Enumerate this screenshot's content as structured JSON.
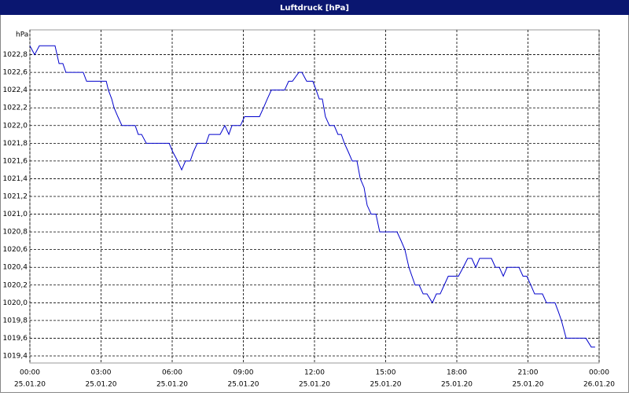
{
  "chart_data": {
    "type": "line",
    "title": "Luftdruck [hPa]",
    "y_unit": "hPa",
    "x": [
      0,
      0.2,
      0.4,
      1.06,
      1.23,
      1.39,
      1.52,
      2.25,
      2.39,
      3.22,
      3.31,
      3.45,
      3.55,
      3.71,
      3.88,
      4.44,
      4.57,
      4.71,
      4.91,
      5.87,
      6.03,
      6.23,
      6.4,
      6.56,
      6.76,
      6.89,
      7.06,
      7.43,
      7.56,
      8.02,
      8.22,
      8.39,
      8.52,
      8.88,
      9.05,
      9.68,
      9.85,
      10.01,
      10.18,
      10.74,
      10.91,
      11.07,
      11.34,
      11.47,
      11.67,
      11.93,
      12.07,
      12.2,
      12.33,
      12.46,
      12.63,
      12.83,
      12.99,
      13.13,
      13.26,
      13.43,
      13.59,
      13.79,
      13.93,
      14.09,
      14.22,
      14.39,
      14.59,
      14.75,
      15.48,
      15.65,
      15.81,
      15.98,
      16.11,
      16.24,
      16.41,
      16.58,
      16.74,
      16.97,
      17.14,
      17.3,
      17.47,
      17.64,
      18.07,
      18.27,
      18.46,
      18.63,
      18.8,
      18.96,
      19.46,
      19.63,
      19.79,
      19.96,
      20.12,
      20.62,
      20.79,
      20.95,
      21.12,
      21.28,
      21.61,
      21.78,
      22.14,
      22.28,
      22.41,
      22.61,
      23.44,
      23.67,
      23.83
    ],
    "series": [
      {
        "name": "Luftdruck",
        "color": "#0000cc",
        "values": [
          1022.9,
          1022.8,
          1022.9,
          1022.9,
          1022.7,
          1022.7,
          1022.6,
          1022.6,
          1022.5,
          1022.5,
          1022.4,
          1022.3,
          1022.2,
          1022.1,
          1022.0,
          1022.0,
          1021.9,
          1021.9,
          1021.8,
          1021.8,
          1021.7,
          1021.6,
          1021.5,
          1021.6,
          1021.6,
          1021.7,
          1021.8,
          1021.8,
          1021.9,
          1021.9,
          1022.0,
          1021.9,
          1022.0,
          1022.0,
          1022.1,
          1022.1,
          1022.2,
          1022.3,
          1022.4,
          1022.4,
          1022.5,
          1022.5,
          1022.6,
          1022.6,
          1022.5,
          1022.5,
          1022.4,
          1022.3,
          1022.3,
          1022.1,
          1022.0,
          1022.0,
          1021.9,
          1021.9,
          1021.8,
          1021.7,
          1021.6,
          1021.6,
          1021.4,
          1021.3,
          1021.1,
          1021.0,
          1021.0,
          1020.8,
          1020.8,
          1020.7,
          1020.6,
          1020.4,
          1020.3,
          1020.2,
          1020.2,
          1020.1,
          1020.1,
          1020.0,
          1020.1,
          1020.1,
          1020.2,
          1020.3,
          1020.3,
          1020.4,
          1020.5,
          1020.5,
          1020.4,
          1020.5,
          1020.5,
          1020.4,
          1020.4,
          1020.3,
          1020.4,
          1020.4,
          1020.3,
          1020.3,
          1020.2,
          1020.1,
          1020.1,
          1020.0,
          1020.0,
          1019.9,
          1019.8,
          1019.6,
          1019.6,
          1019.5,
          1019.5
        ]
      }
    ],
    "xlim": [
      0,
      24
    ],
    "xticks": [
      {
        "value": 0,
        "label": "00:00"
      },
      {
        "value": 3,
        "label": "03:00"
      },
      {
        "value": 6,
        "label": "06:00"
      },
      {
        "value": 9,
        "label": "09:00"
      },
      {
        "value": 12,
        "label": "12:00"
      },
      {
        "value": 15,
        "label": "15:00"
      },
      {
        "value": 18,
        "label": "18:00"
      },
      {
        "value": 21,
        "label": "21:00"
      },
      {
        "value": 24,
        "label": "00:00"
      }
    ],
    "xtick_dates": [
      "25.01.20",
      "25.01.20",
      "25.01.20",
      "25.01.20",
      "25.01.20",
      "25.01.20",
      "25.01.20",
      "25.01.20",
      "26.01.20"
    ],
    "ylim": [
      1019.32,
      1023.08
    ],
    "yticks": [
      {
        "value": 1019.4,
        "label": "1019,4"
      },
      {
        "value": 1019.6,
        "label": "1019,6"
      },
      {
        "value": 1019.8,
        "label": "1019,8"
      },
      {
        "value": 1020.0,
        "label": "1020,0"
      },
      {
        "value": 1020.2,
        "label": "1020,2"
      },
      {
        "value": 1020.4,
        "label": "1020,4"
      },
      {
        "value": 1020.6,
        "label": "1020,6"
      },
      {
        "value": 1020.8,
        "label": "1020,8"
      },
      {
        "value": 1021.0,
        "label": "1021,0"
      },
      {
        "value": 1021.2,
        "label": "1021,2"
      },
      {
        "value": 1021.4,
        "label": "1021,4"
      },
      {
        "value": 1021.6,
        "label": "1021,6"
      },
      {
        "value": 1021.8,
        "label": "1021,8"
      },
      {
        "value": 1022.0,
        "label": "1022,0"
      },
      {
        "value": 1022.2,
        "label": "1022,2"
      },
      {
        "value": 1022.4,
        "label": "1022,4"
      },
      {
        "value": 1022.6,
        "label": "1022,6"
      },
      {
        "value": 1022.8,
        "label": "1022,8"
      }
    ],
    "grid": true
  }
}
